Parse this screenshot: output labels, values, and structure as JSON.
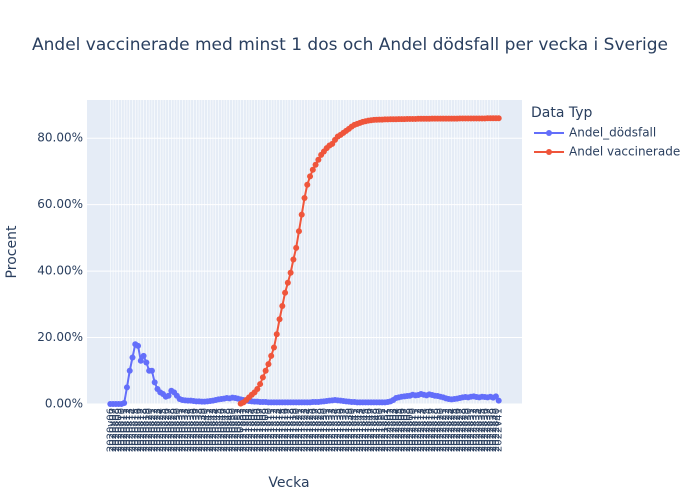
{
  "chart_data": {
    "type": "line",
    "title": "Andel vaccinerade med minst 1 dos och Andel dödsfall per vecka i Sverige",
    "x_label": "Vecka",
    "y_label": "Procent",
    "legend_title": "Data Typ",
    "legend": "right",
    "grid": true,
    "ylim": [
      0,
      91.5
    ],
    "yticks": [
      {
        "value": 0,
        "label": "0.00%"
      },
      {
        "value": 20,
        "label": "20.00%"
      },
      {
        "value": 40,
        "label": "40.00%"
      },
      {
        "value": 60,
        "label": "60.00%"
      },
      {
        "value": 80,
        "label": "80.00%"
      }
    ],
    "categories": [
      "2020v06",
      "2020v07",
      "2020v08",
      "2020v09",
      "2020v10",
      "2020v11",
      "2020v12",
      "2020v13",
      "2020v14",
      "2020v15",
      "2020v16",
      "2020v17",
      "2020v18",
      "2020v19",
      "2020v20",
      "2020v21",
      "2020v22",
      "2020v23",
      "2020v24",
      "2020v25",
      "2020v26",
      "2020v27",
      "2020v28",
      "2020v29",
      "2020v30",
      "2020v31",
      "2020v32",
      "2020v33",
      "2020v34",
      "2020v35",
      "2020v36",
      "2020v37",
      "2020v38",
      "2020v39",
      "2020v40",
      "2020v41",
      "2020v42",
      "2020v43",
      "2020v44",
      "2020v45",
      "2020v46",
      "2020v47",
      "2020v48",
      "2020v49",
      "2020v50",
      "2020v51",
      "2020v52",
      "2020v53",
      "2021v01",
      "2021v02",
      "2021v03",
      "2021v04",
      "2021v05",
      "2021v06",
      "2021v07",
      "2021v08",
      "2021v09",
      "2021v10",
      "2021v11",
      "2021v12",
      "2021v13",
      "2021v14",
      "2021v15",
      "2021v16",
      "2021v17",
      "2021v18",
      "2021v19",
      "2021v20",
      "2021v21",
      "2021v22",
      "2021v23",
      "2021v24",
      "2021v25",
      "2021v26",
      "2021v27",
      "2021v28",
      "2021v29",
      "2021v30",
      "2021v31",
      "2021v32",
      "2021v33",
      "2021v34",
      "2021v35",
      "2021v36",
      "2021v37",
      "2021v38",
      "2021v39",
      "2021v40",
      "2021v41",
      "2021v42",
      "2021v43",
      "2021v44",
      "2021v45",
      "2021v46",
      "2021v47",
      "2021v48",
      "2021v49",
      "2021v50",
      "2021v51",
      "2021v52",
      "2022v01",
      "2022v02",
      "2022v03",
      "2022v04",
      "2022v05",
      "2022v06",
      "2022v07",
      "2022v08",
      "2022v09",
      "2022v10",
      "2022v11",
      "2022v12",
      "2022v13",
      "2022v14",
      "2022v15",
      "2022v16",
      "2022v17",
      "2022v18",
      "2022v19",
      "2022v20",
      "2022v21",
      "2022v22",
      "2022v23",
      "2022v24",
      "2022v25",
      "2022v26",
      "2022v27",
      "2022v28",
      "2022v29",
      "2022v30",
      "2022v31",
      "2022v32",
      "2022v33",
      "2022v34",
      "2022v35",
      "2022v36",
      "2022v37",
      "2022v38",
      "2022v39",
      "2022v40",
      "2022v41"
    ],
    "series": [
      {
        "name": "Andel_dödsfall",
        "color": "#636efa",
        "values": [
          0,
          0,
          0,
          0,
          0,
          0.3,
          5,
          10,
          14,
          18,
          17.5,
          13,
          14.5,
          12.5,
          10,
          10,
          6.5,
          4.5,
          3.5,
          3,
          2.2,
          2.5,
          4,
          3.5,
          2.5,
          1.5,
          1.2,
          1.1,
          1.0,
          1.0,
          0.9,
          0.8,
          0.8,
          0.7,
          0.7,
          0.8,
          0.9,
          1.0,
          1.2,
          1.4,
          1.5,
          1.6,
          1.8,
          1.7,
          1.9,
          1.8,
          1.6,
          1.4,
          1.2,
          1.0,
          0.9,
          0.8,
          0.7,
          0.7,
          0.6,
          0.6,
          0.6,
          0.5,
          0.5,
          0.5,
          0.5,
          0.5,
          0.5,
          0.5,
          0.5,
          0.5,
          0.5,
          0.5,
          0.5,
          0.5,
          0.5,
          0.5,
          0.5,
          0.6,
          0.6,
          0.6,
          0.7,
          0.8,
          0.9,
          1.0,
          1.1,
          1.2,
          1.1,
          1.0,
          0.9,
          0.8,
          0.7,
          0.6,
          0.6,
          0.5,
          0.5,
          0.5,
          0.5,
          0.5,
          0.5,
          0.5,
          0.5,
          0.5,
          0.5,
          0.5,
          0.6,
          0.8,
          1.2,
          1.8,
          2.0,
          2.2,
          2.3,
          2.4,
          2.5,
          2.8,
          2.6,
          2.7,
          3.0,
          2.8,
          2.6,
          2.9,
          2.7,
          2.5,
          2.4,
          2.2,
          2.0,
          1.7,
          1.5,
          1.4,
          1.5,
          1.6,
          1.8,
          2.0,
          2.1,
          2.0,
          2.2,
          2.3,
          2.1,
          2.0,
          2.2,
          2.1,
          2.0,
          2.2,
          1.9,
          2.3,
          1.0
        ]
      },
      {
        "name": "Andel vaccinerade",
        "color": "#ef553b",
        "values": [
          null,
          null,
          null,
          null,
          null,
          null,
          null,
          null,
          null,
          null,
          null,
          null,
          null,
          null,
          null,
          null,
          null,
          null,
          null,
          null,
          null,
          null,
          null,
          null,
          null,
          null,
          null,
          null,
          null,
          null,
          null,
          null,
          null,
          null,
          null,
          null,
          null,
          null,
          null,
          null,
          null,
          null,
          null,
          null,
          null,
          null,
          null,
          0.1,
          0.5,
          1.2,
          2,
          2.8,
          3.5,
          4.5,
          6,
          8,
          10,
          12,
          14.5,
          17,
          21,
          25.5,
          29.5,
          33.5,
          36.5,
          39.5,
          43.5,
          47,
          52,
          57,
          62,
          66,
          68.5,
          70.5,
          72,
          73.5,
          75,
          76,
          77,
          77.8,
          78.3,
          79.5,
          80.5,
          81,
          81.6,
          82.2,
          82.8,
          83.5,
          84,
          84.3,
          84.6,
          84.9,
          85.1,
          85.3,
          85.4,
          85.5,
          85.55,
          85.6,
          85.6,
          85.65,
          85.65,
          85.7,
          85.7,
          85.7,
          85.75,
          85.75,
          85.75,
          85.8,
          85.8,
          85.8,
          85.8,
          85.85,
          85.85,
          85.85,
          85.85,
          85.85,
          85.9,
          85.9,
          85.9,
          85.9,
          85.9,
          85.9,
          85.9,
          85.9,
          85.9,
          85.9,
          85.95,
          85.95,
          85.95,
          85.95,
          85.95,
          85.95,
          85.95,
          85.95,
          85.95,
          85.95,
          86.0,
          86.0,
          86.0,
          86.0,
          86.0
        ]
      }
    ]
  }
}
